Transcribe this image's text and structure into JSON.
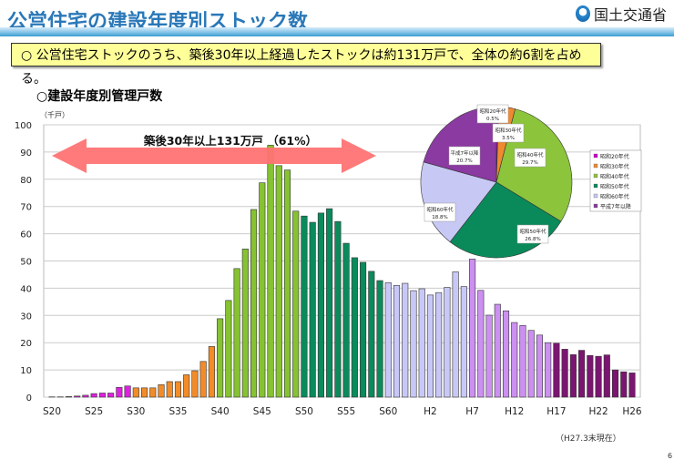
{
  "header": {
    "title": "公営住宅の建設年度別ストック数",
    "ministry": "国土交通省"
  },
  "summary": "○ 公営住宅ストックのうち、築後30年以上経過したストックは約131万戸で、全体の約6割を占める。",
  "subtitle": "○建設年度別管理戸数",
  "footer": {
    "as_of": "（H27.3末現在）",
    "page": "6"
  },
  "chart_data": [
    {
      "type": "bar",
      "title": "建設年度別管理戸数",
      "ylabel": "（千戸）",
      "xlabel": "",
      "ylim": [
        0,
        100
      ],
      "yticks": [
        0,
        10,
        20,
        30,
        40,
        50,
        60,
        70,
        80,
        90,
        100
      ],
      "grid": true,
      "annotation": "築後30年以上131万戸 （61%）",
      "categories": [
        "S20",
        "S21",
        "S22",
        "S23",
        "S24",
        "S25",
        "S26",
        "S27",
        "S28",
        "S29",
        "S30",
        "S31",
        "S32",
        "S33",
        "S34",
        "S35",
        "S36",
        "S37",
        "S38",
        "S39",
        "S40",
        "S41",
        "S42",
        "S43",
        "S44",
        "S45",
        "S46",
        "S47",
        "S48",
        "S49",
        "S50",
        "S51",
        "S52",
        "S53",
        "S54",
        "S55",
        "S56",
        "S57",
        "S58",
        "S59",
        "S60",
        "S61",
        "S62",
        "S63",
        "H1",
        "H2",
        "H3",
        "H4",
        "H5",
        "H6",
        "H7",
        "H8",
        "H9",
        "H10",
        "H11",
        "H12",
        "H13",
        "H14",
        "H15",
        "H16",
        "H17",
        "H18",
        "H19",
        "H20",
        "H21",
        "H22",
        "H23",
        "H24",
        "H25",
        "H26"
      ],
      "xtick_labels": [
        "S20",
        "S25",
        "S30",
        "S35",
        "S40",
        "S45",
        "S50",
        "S55",
        "S60",
        "H2",
        "H7",
        "H12",
        "H17",
        "H22",
        "H26"
      ],
      "values": [
        0.1,
        0.1,
        0.2,
        0.4,
        0.7,
        1.3,
        1.5,
        1.5,
        3.6,
        4.1,
        3.4,
        3.4,
        3.4,
        4.6,
        5.7,
        5.7,
        8.2,
        9.7,
        13.1,
        18.6,
        28.8,
        35.5,
        47.2,
        54.4,
        68.9,
        78.7,
        92.5,
        85,
        83.4,
        68.3,
        66.5,
        64.2,
        67.6,
        69.2,
        64.5,
        56.5,
        51.2,
        49.5,
        46.2,
        42.8,
        42,
        41,
        41.8,
        39.1,
        39.8,
        37.5,
        38.4,
        40.3,
        46,
        40.6,
        50.7,
        39.2,
        30.1,
        34.1,
        31.7,
        27.4,
        26.3,
        24.5,
        22.8,
        20,
        19.8,
        17.6,
        15.6,
        17.2,
        15.3,
        15,
        15.5,
        10,
        9.3,
        8.9
      ],
      "bar_groups": [
        {
          "count": 10,
          "color": "#e020e0"
        },
        {
          "count": 10,
          "color": "#f28c28"
        },
        {
          "count": 10,
          "color": "#86c232"
        },
        {
          "count": 10,
          "color": "#0b8a5c"
        },
        {
          "count": 10,
          "color": "#c8c8f8"
        },
        {
          "count": 10,
          "color": "#cc90f0"
        },
        {
          "count": 10,
          "color": "#7a1670"
        }
      ]
    },
    {
      "type": "pie",
      "labels": [
        "昭和20年代",
        "昭和30年代",
        "昭和40年代",
        "昭和50年代",
        "昭和60年代",
        "平成7年以降"
      ],
      "values": [
        0.5,
        3.5,
        29.7,
        26.8,
        18.8,
        20.7
      ],
      "value_labels": [
        "0.5%",
        "3.5%",
        "29.7%",
        "26.8%",
        "18.8%",
        "20.7%"
      ],
      "colors": [
        "#cc00cc",
        "#f08a30",
        "#8cc43c",
        "#0a8a5a",
        "#c8c8f5",
        "#8a3aa0"
      ],
      "legend": "right"
    }
  ]
}
